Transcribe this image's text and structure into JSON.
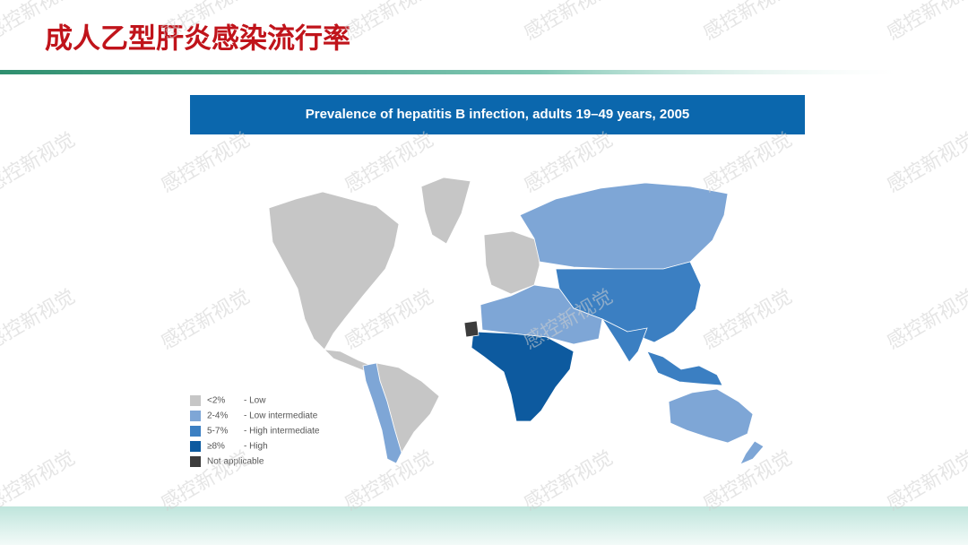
{
  "header": {
    "title": "成人乙型肝炎感染流行率"
  },
  "map": {
    "title": "Prevalence of hepatitis B infection, adults 19–49 years, 2005",
    "legend": [
      {
        "range": "<2%",
        "label": "- Low",
        "color": "#c6c6c6"
      },
      {
        "range": "2-4%",
        "label": "- Low intermediate",
        "color": "#7ea6d6"
      },
      {
        "range": "5-7%",
        "label": "- High intermediate",
        "color": "#3b7fc2"
      },
      {
        "range": "≥8%",
        "label": "- High",
        "color": "#0d5a9f"
      },
      {
        "range": "Not applicable",
        "color": "#3c3c3c"
      }
    ]
  },
  "watermark": "感控新视觉"
}
